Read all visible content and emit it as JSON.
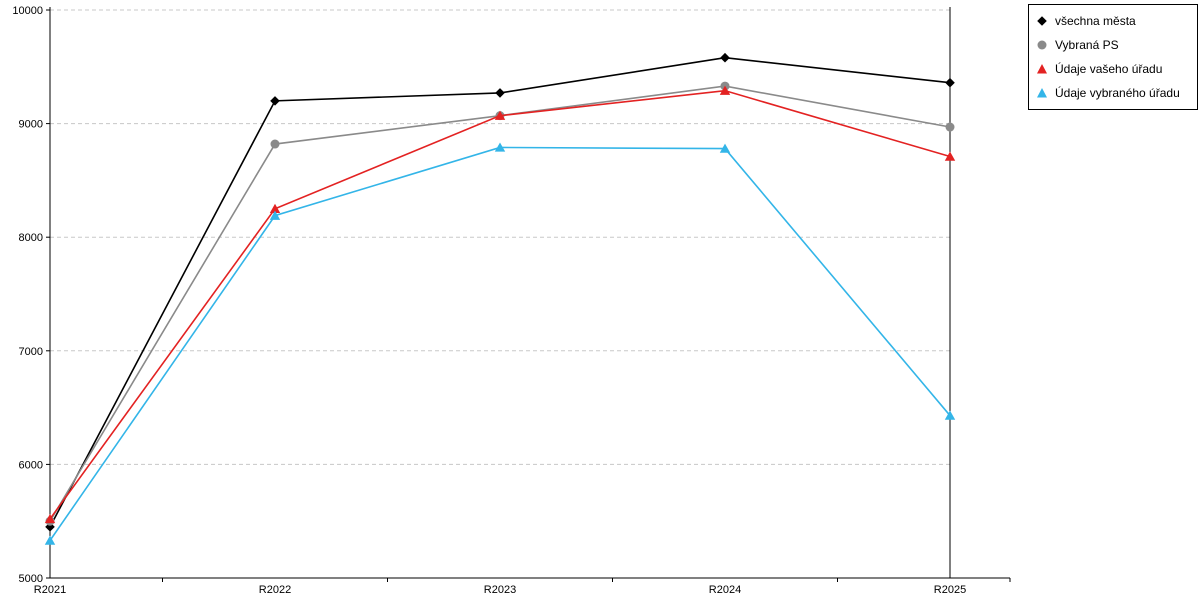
{
  "chart_data": {
    "type": "line",
    "title": "",
    "xlabel": "",
    "ylabel": "",
    "categories": [
      "R2021",
      "R2022",
      "R2023",
      "R2024",
      "R2025"
    ],
    "series": [
      {
        "name": "všechna města",
        "color": "#000000",
        "marker": "diamond",
        "values": [
          5450,
          9200,
          9270,
          9580,
          9360
        ]
      },
      {
        "name": "Vybraná PS",
        "color": "#8a8a8a",
        "marker": "circle",
        "values": [
          5500,
          8820,
          9070,
          9330,
          8970
        ]
      },
      {
        "name": "Údaje vašeho úřadu",
        "color": "#e32222",
        "marker": "triangle",
        "values": [
          5520,
          8250,
          9070,
          9290,
          8710
        ]
      },
      {
        "name": "Údaje vybraného úřadu",
        "color": "#33b5e8",
        "marker": "triangle",
        "values": [
          5330,
          8190,
          8790,
          8780,
          6430
        ]
      }
    ],
    "ylim": [
      5000,
      10000
    ],
    "yticks": [
      5000,
      6000,
      7000,
      8000,
      9000,
      10000
    ],
    "grid": "horizontal-dashed",
    "legend_position": "top-right-outside-plot",
    "style": {
      "background": "#ffffff",
      "grid_color": "#c8c8c8",
      "axis_color": "#000000"
    }
  }
}
